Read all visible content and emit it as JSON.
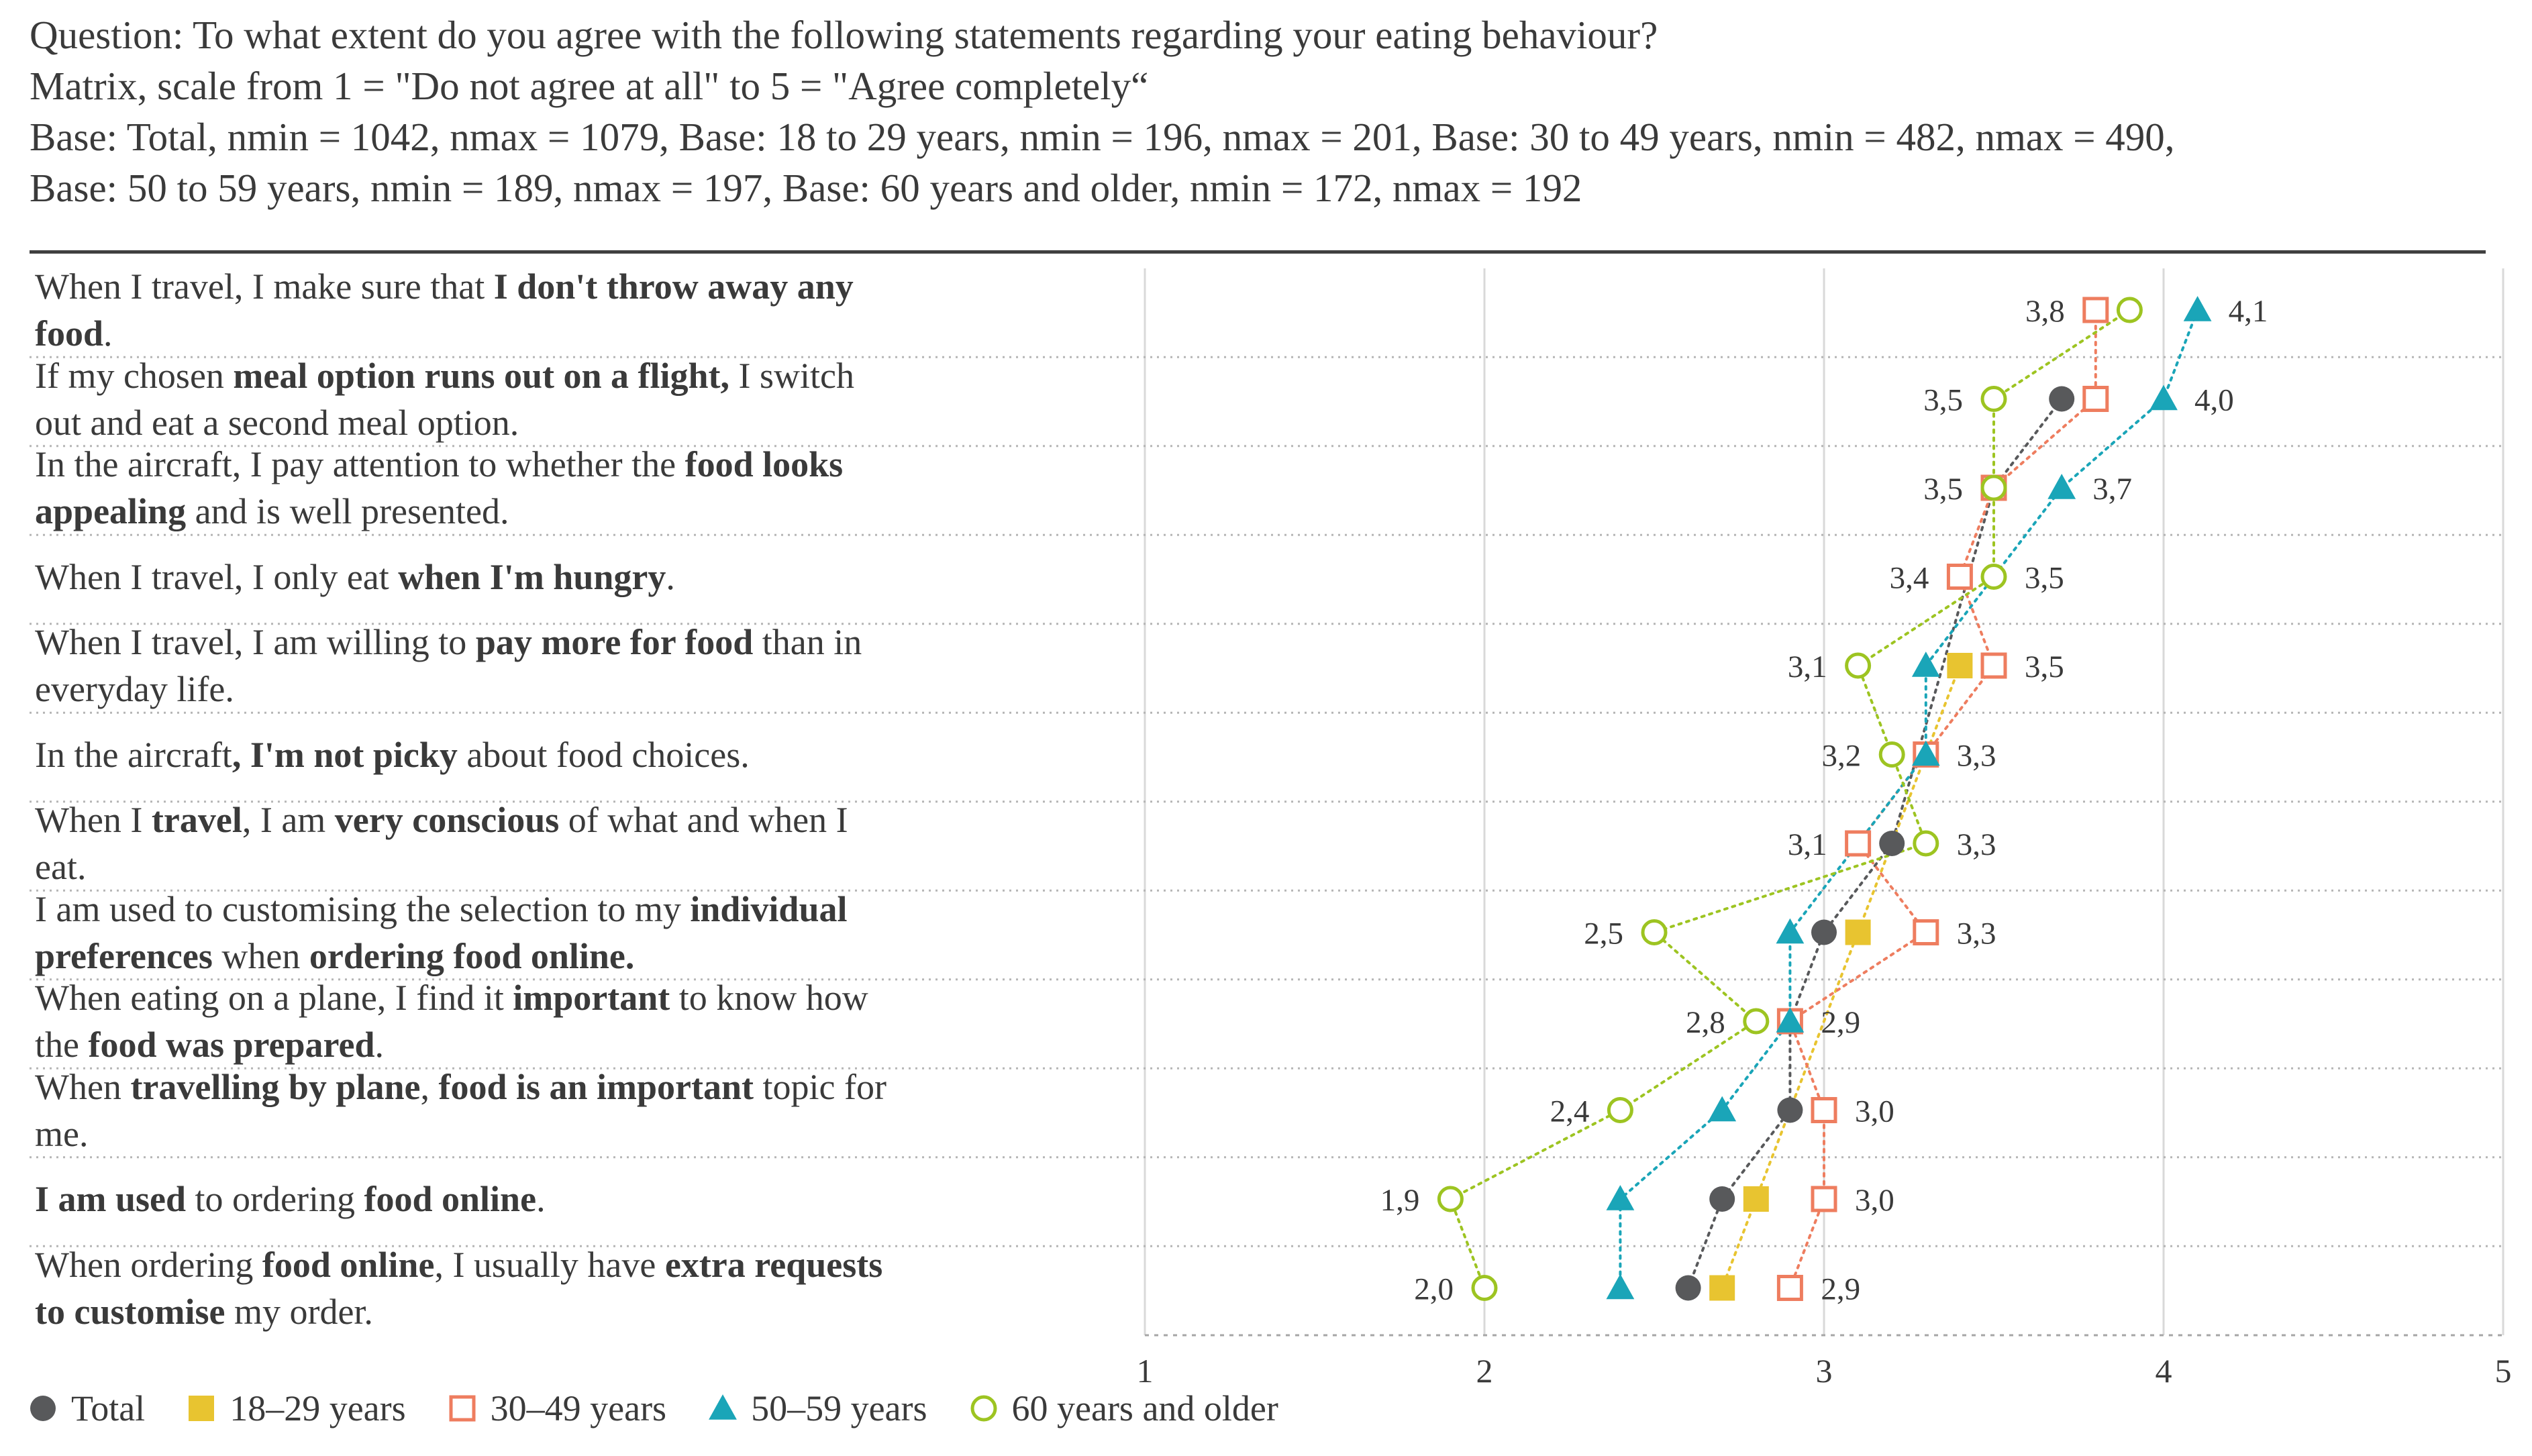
{
  "header": {
    "question": "Question: To what extent do you agree with the following  statements regarding your eating behaviour?",
    "matrix": "Matrix, scale from 1 = \"Do not agree at all\" to 5 = \"Agree completely“",
    "base_line1": "Base: Total, nmin = 1042, nmax = 1079, Base: 18 to 29 years, nmin = 196, nmax = 201, Base: 30 to 49 years, nmin = 482, nmax = 490,",
    "base_line2": "Base: 50 to 59 years, nmin = 189, nmax = 197, Base: 60 years and older, nmin = 172, nmax = 192"
  },
  "statements": [
    [
      {
        "t": "When I travel, I make sure that "
      },
      {
        "t": "I don't throw away any",
        "b": true
      },
      {
        "br": true
      },
      {
        "t": "food",
        "b": true
      },
      {
        "t": "."
      }
    ],
    [
      {
        "t": "If my chosen "
      },
      {
        "t": "meal option runs out on a flight,",
        "b": true
      },
      {
        "t": " I switch"
      },
      {
        "br": true
      },
      {
        "t": "out and eat a second meal option."
      }
    ],
    [
      {
        "t": "In the aircraft, I pay attention to whether the "
      },
      {
        "t": "food looks",
        "b": true
      },
      {
        "br": true
      },
      {
        "t": "appealing",
        "b": true
      },
      {
        "t": " and is well presented."
      }
    ],
    [
      {
        "t": "When I travel, I only eat "
      },
      {
        "t": "when I'm hungry",
        "b": true
      },
      {
        "t": "."
      }
    ],
    [
      {
        "t": "When I travel, I am willing to "
      },
      {
        "t": "pay more for food",
        "b": true
      },
      {
        "t": " than in"
      },
      {
        "br": true
      },
      {
        "t": "everyday life."
      }
    ],
    [
      {
        "t": "In the aircraft"
      },
      {
        "t": ", I'm not picky",
        "b": true
      },
      {
        "t": " about food choices."
      }
    ],
    [
      {
        "t": "When I "
      },
      {
        "t": "travel",
        "b": true
      },
      {
        "t": ", I am "
      },
      {
        "t": "very conscious",
        "b": true
      },
      {
        "t": " of what and when I"
      },
      {
        "br": true
      },
      {
        "t": "eat."
      }
    ],
    [
      {
        "t": "I am used to customising the selection to my "
      },
      {
        "t": "individual",
        "b": true
      },
      {
        "br": true
      },
      {
        "t": "preferences",
        "b": true
      },
      {
        "t": " when "
      },
      {
        "t": "ordering food online.",
        "b": true
      }
    ],
    [
      {
        "t": "When eating on a plane, I find it "
      },
      {
        "t": "important",
        "b": true
      },
      {
        "t": " to know how"
      },
      {
        "br": true
      },
      {
        "t": "the "
      },
      {
        "t": "food was prepared",
        "b": true
      },
      {
        "t": "."
      }
    ],
    [
      {
        "t": "When "
      },
      {
        "t": "travelling by plane",
        "b": true
      },
      {
        "t": ", "
      },
      {
        "t": "food is an important",
        "b": true
      },
      {
        "t": " topic for"
      },
      {
        "br": true
      },
      {
        "t": "me."
      }
    ],
    [
      {
        "t": "I am used",
        "b": true
      },
      {
        "t": " to ordering "
      },
      {
        "t": "food online",
        "b": true
      },
      {
        "t": "."
      }
    ],
    [
      {
        "t": "When ordering "
      },
      {
        "t": "food online",
        "b": true
      },
      {
        "t": ",  I usually have "
      },
      {
        "t": "extra requests",
        "b": true
      },
      {
        "br": true
      },
      {
        "t": "to customise",
        "b": true
      },
      {
        "t": " my order."
      }
    ]
  ],
  "chart_data": {
    "type": "scatter",
    "title": "To what extent do you agree with the following statements regarding your eating behaviour?",
    "xlabel": "",
    "ylabel": "",
    "xlim": [
      1,
      5
    ],
    "x_ticks": [
      "1",
      "2",
      "3",
      "4",
      "5"
    ],
    "grid": true,
    "legend_position": "bottom-left",
    "series": [
      {
        "name": "Total",
        "marker": "circle-filled",
        "color": "#58595b",
        "values": [
          null,
          3.7,
          3.5,
          null,
          null,
          null,
          3.2,
          3.0,
          2.9,
          2.9,
          2.7,
          2.6
        ]
      },
      {
        "name": "18–29 years",
        "marker": "square-filled",
        "color": "#e8c430",
        "values": [
          null,
          null,
          null,
          null,
          3.4,
          null,
          null,
          3.1,
          null,
          null,
          2.8,
          2.7
        ]
      },
      {
        "name": "30–49 years",
        "marker": "square-open",
        "color": "#ee7d5f",
        "values": [
          3.8,
          3.8,
          3.5,
          3.4,
          3.5,
          3.3,
          3.1,
          3.3,
          2.9,
          3.0,
          3.0,
          2.9
        ]
      },
      {
        "name": "50–59 years",
        "marker": "triangle-filled",
        "color": "#1aa5b8",
        "values": [
          4.1,
          4.0,
          3.7,
          null,
          3.3,
          3.3,
          null,
          2.9,
          2.9,
          2.7,
          2.4,
          2.4
        ]
      },
      {
        "name": "60 years and older",
        "marker": "circle-open",
        "color": "#9dc421",
        "values": [
          3.9,
          3.5,
          3.5,
          3.5,
          3.1,
          3.2,
          3.3,
          2.5,
          2.8,
          2.4,
          1.9,
          2.0
        ]
      }
    ],
    "data_labels": [
      {
        "row": 0,
        "x": 3.8,
        "side": "left",
        "text": "3,8"
      },
      {
        "row": 0,
        "x": 4.1,
        "side": "right",
        "text": "4,1"
      },
      {
        "row": 1,
        "x": 3.5,
        "side": "left",
        "text": "3,5"
      },
      {
        "row": 1,
        "x": 4.0,
        "side": "right",
        "text": "4,0"
      },
      {
        "row": 2,
        "x": 3.5,
        "side": "left",
        "text": "3,5"
      },
      {
        "row": 2,
        "x": 3.7,
        "side": "right",
        "text": "3,7"
      },
      {
        "row": 3,
        "x": 3.4,
        "side": "left",
        "text": "3,4"
      },
      {
        "row": 3,
        "x": 3.5,
        "side": "right",
        "text": "3,5"
      },
      {
        "row": 4,
        "x": 3.1,
        "side": "left",
        "text": "3,1"
      },
      {
        "row": 4,
        "x": 3.5,
        "side": "right",
        "text": "3,5"
      },
      {
        "row": 5,
        "x": 3.2,
        "side": "left",
        "text": "3,2"
      },
      {
        "row": 5,
        "x": 3.3,
        "side": "right",
        "text": "3,3"
      },
      {
        "row": 6,
        "x": 3.1,
        "side": "left",
        "text": "3,1"
      },
      {
        "row": 6,
        "x": 3.3,
        "side": "right",
        "text": "3,3"
      },
      {
        "row": 7,
        "x": 2.5,
        "side": "left",
        "text": "2,5"
      },
      {
        "row": 7,
        "x": 3.3,
        "side": "right",
        "text": "3,3"
      },
      {
        "row": 8,
        "x": 2.8,
        "side": "left",
        "text": "2,8"
      },
      {
        "row": 8,
        "x": 2.9,
        "side": "right",
        "text": "2,9"
      },
      {
        "row": 9,
        "x": 2.4,
        "side": "left",
        "text": "2,4"
      },
      {
        "row": 9,
        "x": 3.0,
        "side": "right",
        "text": "3,0"
      },
      {
        "row": 10,
        "x": 1.9,
        "side": "left",
        "text": "1,9"
      },
      {
        "row": 10,
        "x": 3.0,
        "side": "right",
        "text": "3,0"
      },
      {
        "row": 11,
        "x": 2.0,
        "side": "left",
        "text": "2,0"
      },
      {
        "row": 11,
        "x": 2.9,
        "side": "right",
        "text": "2,9"
      }
    ]
  }
}
